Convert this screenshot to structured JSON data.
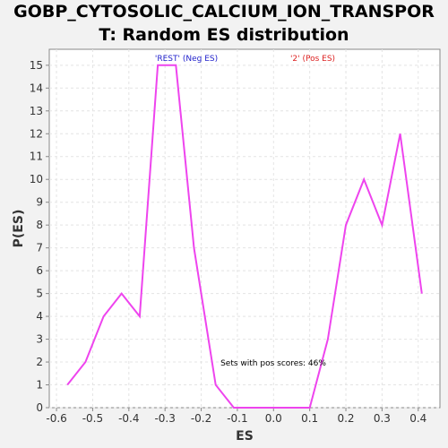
{
  "chart_data": {
    "type": "line",
    "title_line1": "GOBP_CYTOSOLIC_CALCIUM_ION_TRANSPOR",
    "title_line2": "T: Random ES distribution",
    "xlabel": "ES",
    "ylabel": "P(ES)",
    "xlim": [
      -0.62,
      0.46
    ],
    "ylim": [
      0,
      15.7
    ],
    "x_ticks": [
      "-0.6",
      "-0.5",
      "-0.4",
      "-0.3",
      "-0.2",
      "-0.1",
      "0.0",
      "0.1",
      "0.2",
      "0.3",
      "0.4"
    ],
    "x_tick_values": [
      -0.6,
      -0.5,
      -0.4,
      -0.3,
      -0.2,
      -0.1,
      0.0,
      0.1,
      0.2,
      0.3,
      0.4
    ],
    "y_ticks": [
      "0",
      "1",
      "2",
      "3",
      "4",
      "5",
      "6",
      "7",
      "8",
      "9",
      "10",
      "11",
      "12",
      "13",
      "14",
      "15"
    ],
    "y_tick_values": [
      0,
      1,
      2,
      3,
      4,
      5,
      6,
      7,
      8,
      9,
      10,
      11,
      12,
      13,
      14,
      15
    ],
    "grid": true,
    "series": [
      {
        "color": "#ee44ee",
        "x": [
          -0.57,
          -0.52,
          -0.47,
          -0.42,
          -0.37,
          -0.32,
          -0.27,
          -0.22,
          -0.16,
          -0.11,
          -0.06,
          -0.01,
          0.04,
          0.1,
          0.15,
          0.2,
          0.25,
          0.3,
          0.35,
          0.41
        ],
        "y": [
          1,
          2,
          4,
          5,
          4,
          15,
          15,
          7,
          1,
          0,
          0,
          0,
          0,
          0,
          3,
          8,
          10,
          8,
          12,
          5
        ]
      }
    ],
    "annotations": {
      "neg_label": "'REST' (Neg ES)",
      "neg_color": "#2222cc",
      "pos_label": "'2' (Pos ES)",
      "pos_color": "#dd2222",
      "pos_score_text": "Sets with pos scores: 46%"
    }
  }
}
